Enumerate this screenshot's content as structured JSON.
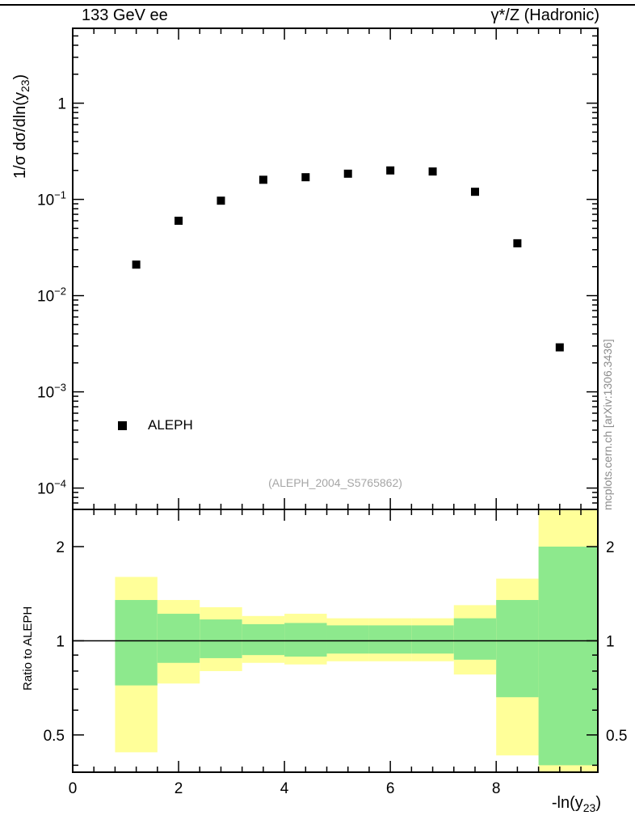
{
  "header": {
    "left": "133 GeV ee",
    "right": "γ*/Z (Hadronic)"
  },
  "side_note": "mcplots.cern.ch [arXiv:1306.3436]",
  "watermark": "(ALEPH_2004_S5765862)",
  "legend": {
    "label": "ALEPH",
    "marker": "filled-square",
    "color": "#000000"
  },
  "axes": {
    "x_title_main": "-ln(y",
    "x_title_sub": "23",
    "x_title_close": ")",
    "y_title_main": "1/σ  dσ/dln(y",
    "y_title_sub": "23",
    "y_title_close": ")",
    "ratio_y_title": "Ratio to ALEPH"
  },
  "chart_data": [
    {
      "type": "scatter",
      "panel": "main",
      "title": "",
      "xlabel": "-ln(y_23)",
      "ylabel": "1/σ dσ/dln(y_23)",
      "xlim": [
        0,
        9.92
      ],
      "ylim": [
        6e-05,
        6
      ],
      "yscale": "log",
      "xticks": [
        0,
        2,
        4,
        6,
        8
      ],
      "xminor_step": 0.4,
      "ytick_exponents": [
        0,
        -1,
        -2,
        -3,
        -4
      ],
      "series": [
        {
          "name": "ALEPH",
          "marker": "filled-square",
          "color": "#000000",
          "x": [
            1.2,
            2.0,
            2.8,
            3.6,
            4.4,
            5.2,
            6.0,
            6.8,
            7.6,
            8.4,
            9.2
          ],
          "y": [
            0.021,
            0.06,
            0.097,
            0.16,
            0.17,
            0.185,
            0.2,
            0.195,
            0.12,
            0.035,
            0.0029
          ]
        }
      ]
    },
    {
      "type": "ratio-bands",
      "panel": "ratio",
      "ylabel": "Ratio to ALEPH",
      "yscale": "log",
      "ylim": [
        0.38,
        2.63
      ],
      "yticks": [
        0.5,
        1,
        2
      ],
      "yminor": [
        0.4,
        0.6,
        0.7,
        0.8,
        0.9
      ],
      "reference_line": 1.0,
      "band_colors": {
        "outer": "#ffff99",
        "inner": "#8de98d"
      },
      "bands": [
        {
          "x": [
            0.8,
            1.6
          ],
          "outer": [
            0.44,
            1.6
          ],
          "inner": [
            0.72,
            1.35
          ]
        },
        {
          "x": [
            1.6,
            2.4
          ],
          "outer": [
            0.73,
            1.35
          ],
          "inner": [
            0.85,
            1.22
          ]
        },
        {
          "x": [
            2.4,
            3.2
          ],
          "outer": [
            0.8,
            1.28
          ],
          "inner": [
            0.88,
            1.17
          ]
        },
        {
          "x": [
            3.2,
            4.0
          ],
          "outer": [
            0.85,
            1.2
          ],
          "inner": [
            0.9,
            1.13
          ]
        },
        {
          "x": [
            4.0,
            4.8
          ],
          "outer": [
            0.84,
            1.22
          ],
          "inner": [
            0.89,
            1.14
          ]
        },
        {
          "x": [
            4.8,
            5.6
          ],
          "outer": [
            0.86,
            1.18
          ],
          "inner": [
            0.91,
            1.12
          ]
        },
        {
          "x": [
            5.6,
            6.4
          ],
          "outer": [
            0.86,
            1.18
          ],
          "inner": [
            0.91,
            1.12
          ]
        },
        {
          "x": [
            6.4,
            7.2
          ],
          "outer": [
            0.86,
            1.18
          ],
          "inner": [
            0.91,
            1.12
          ]
        },
        {
          "x": [
            7.2,
            8.0
          ],
          "outer": [
            0.78,
            1.3
          ],
          "inner": [
            0.87,
            1.18
          ]
        },
        {
          "x": [
            8.0,
            8.8
          ],
          "outer": [
            0.43,
            1.58
          ],
          "inner": [
            0.66,
            1.35
          ]
        },
        {
          "x": [
            8.8,
            9.92
          ],
          "outer": [
            0.33,
            2.7
          ],
          "inner": [
            0.4,
            2.0
          ]
        }
      ]
    }
  ]
}
